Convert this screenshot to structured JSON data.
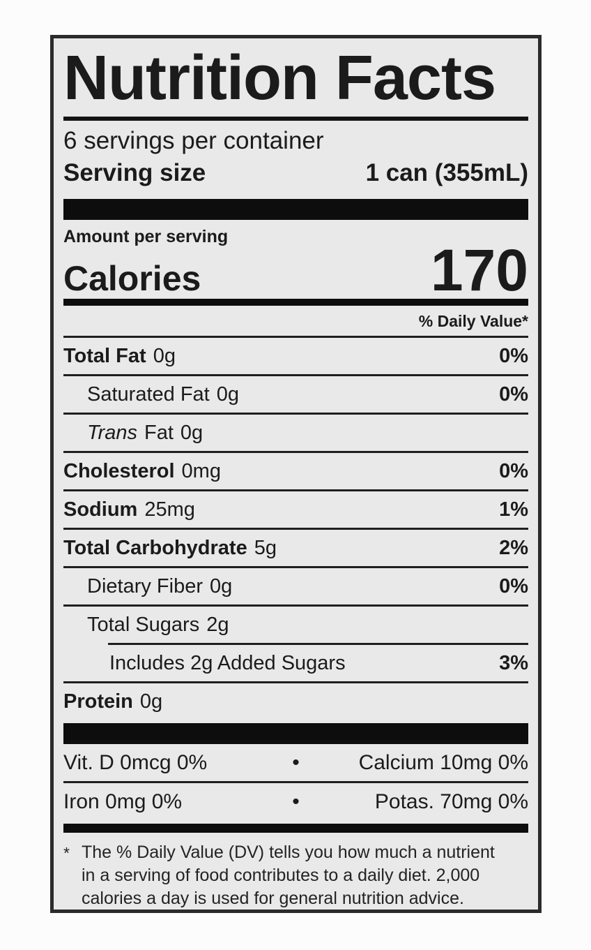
{
  "label": {
    "title": "Nutrition Facts",
    "servings_per_container": "6 servings per container",
    "serving_size_label": "Serving size",
    "serving_size_value": "1 can (355mL)",
    "amount_per_serving": "Amount per serving",
    "calories_label": "Calories",
    "calories_value": "170",
    "daily_value_header": "% Daily Value*",
    "nutrients": [
      {
        "name": "Total Fat",
        "amount": "0g",
        "dv": "0%"
      },
      {
        "name": "Saturated Fat",
        "amount": "0g",
        "dv": "0%"
      },
      {
        "name_italic": "Trans",
        "name": "Fat",
        "amount": "0g",
        "dv": ""
      },
      {
        "name": "Cholesterol",
        "amount": "0mg",
        "dv": "0%"
      },
      {
        "name": "Sodium",
        "amount": "25mg",
        "dv": "1%"
      },
      {
        "name": "Total Carbohydrate",
        "amount": "5g",
        "dv": "2%"
      },
      {
        "name": "Dietary Fiber",
        "amount": "0g",
        "dv": "0%"
      },
      {
        "name": "Total Sugars",
        "amount": "2g",
        "dv": ""
      },
      {
        "name": "Includes 2g Added Sugars",
        "amount": "",
        "dv": "3%"
      },
      {
        "name": "Protein",
        "amount": "0g",
        "dv": ""
      }
    ],
    "bullet": "•",
    "micronutrients": [
      {
        "left": "Vit. D 0mcg 0%",
        "right": "Calcium 10mg 0%"
      },
      {
        "left": "Iron 0mg 0%",
        "right": "Potas. 70mg 0%"
      }
    ],
    "footnote_marker": "*",
    "footnote_lines": [
      "The % Daily Value (DV) tells you how much a nutrient",
      "in a serving of food contributes to a daily diet. 2,000",
      "calories a day is used for general nutrition advice."
    ]
  }
}
